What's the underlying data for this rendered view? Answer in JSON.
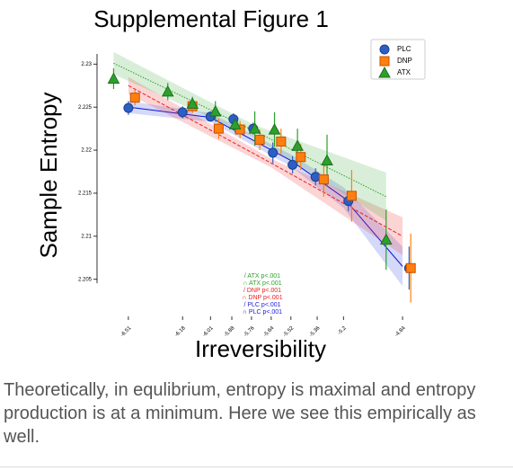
{
  "chart_data": {
    "type": "scatter",
    "title": "Supplemental Figure 1",
    "xlabel": "Irreversibility",
    "ylabel": "Sample Entropy",
    "xlim": [
      -6.69,
      -4.72
    ],
    "xticks": [
      -6.51,
      -6.18,
      -6.01,
      -5.88,
      -5.76,
      -5.64,
      -5.52,
      -5.36,
      -5.2,
      -4.84
    ],
    "ylim": [
      2.2009,
      2.2317
    ],
    "yticks": [
      2.205,
      2.21,
      2.215,
      2.22,
      2.225,
      2.23
    ],
    "legend": "upper right",
    "annotations": [
      {
        "text": "/ ATX p<.001",
        "color": "#2ca02c"
      },
      {
        "text": "∩ ATX p<.001",
        "color": "#2ca02c"
      },
      {
        "text": "/ DNP p<.001",
        "color": "#e82020"
      },
      {
        "text": "∩ DNP p<.001",
        "color": "#e82020"
      },
      {
        "text": "/ PLC p<.001",
        "color": "#2020d8"
      },
      {
        "text": "∩ PLC p<.001",
        "color": "#2020d8"
      }
    ],
    "series": [
      {
        "name": "PLC",
        "color": "#2b5fc7",
        "marker": "circle",
        "x": [
          -6.51,
          -6.18,
          -6.01,
          -5.87,
          -5.75,
          -5.63,
          -5.51,
          -5.37,
          -5.17,
          -4.8
        ],
        "values": [
          2.2249,
          2.2244,
          2.2239,
          2.2236,
          2.2225,
          2.2197,
          2.2183,
          2.2169,
          2.2141,
          2.2063
        ],
        "errors": [
          0.0008,
          0.0007,
          0.0006,
          0.0007,
          0.0007,
          0.0012,
          0.001,
          0.001,
          0.0012,
          0.0025
        ],
        "fit": {
          "x": [
            -6.51,
            -6.01,
            -5.52,
            -5.2,
            -4.84
          ],
          "y": [
            2.225,
            2.2238,
            2.2188,
            2.2145,
            2.2065
          ],
          "lower": [
            2.2243,
            2.2233,
            2.2181,
            2.2133,
            2.2042
          ],
          "upper": [
            2.2257,
            2.2243,
            2.2195,
            2.2157,
            2.2088
          ]
        }
      },
      {
        "name": "DNP",
        "color": "#ff7f0e",
        "marker": "square",
        "x": [
          -6.47,
          -6.12,
          -5.96,
          -5.83,
          -5.71,
          -5.58,
          -5.46,
          -5.32,
          -5.15,
          -4.79
        ],
        "values": [
          2.2261,
          2.2251,
          2.2225,
          2.2224,
          2.2212,
          2.221,
          2.2192,
          2.2166,
          2.2147,
          2.2063
        ],
        "errors": [
          0.0009,
          0.0008,
          0.0012,
          0.001,
          0.0012,
          0.0015,
          0.0015,
          0.002,
          0.003,
          0.004
        ],
        "fit": {
          "x": [
            -6.51,
            -5.64,
            -4.84
          ],
          "y": [
            2.2275,
            2.2185,
            2.21
          ],
          "lower": [
            2.2265,
            2.218,
            2.2078
          ],
          "upper": [
            2.2285,
            2.219,
            2.2122
          ]
        }
      },
      {
        "name": "ATX",
        "color": "#2ca02c",
        "marker": "triangle",
        "x": [
          -6.6,
          -6.27,
          -6.12,
          -5.98,
          -5.86,
          -5.74,
          -5.62,
          -5.48,
          -5.3,
          -4.94
        ],
        "values": [
          2.2283,
          2.2268,
          2.2254,
          2.2245,
          2.223,
          2.2225,
          2.2224,
          2.2205,
          2.2188,
          2.2096
        ],
        "errors": [
          0.0012,
          0.001,
          0.0008,
          0.0012,
          0.001,
          0.002,
          0.002,
          0.002,
          0.003,
          0.0035
        ],
        "fit": {
          "x": [
            -6.6,
            -5.74,
            -4.94
          ],
          "y": [
            2.2301,
            2.2222,
            2.2146
          ],
          "lower": [
            2.2288,
            2.2215,
            2.2118
          ],
          "upper": [
            2.2314,
            2.2229,
            2.2174
          ]
        }
      }
    ]
  },
  "caption": "Theoretically, in equlibrium, entropy is maximal and entropy production is at a minimum. Here we see this empirically as well."
}
